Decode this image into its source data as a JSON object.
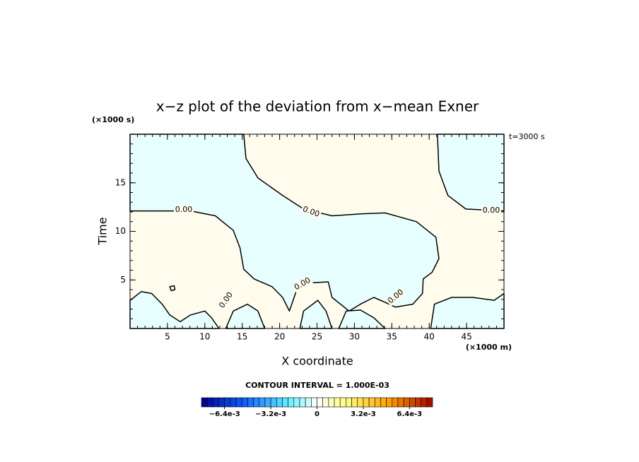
{
  "chart_data": {
    "type": "contour",
    "title": "x−z plot of the deviation from x−mean Exner",
    "x_label": "X coordinate",
    "y_label": "Time",
    "x_unit": "(×1000 m)",
    "y_unit": "(×1000 s)",
    "annotation": "t=3000 s",
    "xlim": [
      0,
      50
    ],
    "ylim": [
      0,
      20
    ],
    "xticks": [
      5,
      10,
      15,
      20,
      25,
      30,
      35,
      40,
      45
    ],
    "yticks": [
      5,
      10,
      15
    ],
    "minor_step": 1,
    "contour_level": 0,
    "contour_labels": [
      "0.00",
      "0.00",
      "0.00",
      "0.00",
      "0.00",
      "0.00"
    ],
    "negative_color": "#e8ffff",
    "positive_color": "#fffcee",
    "line_color": "#000000",
    "negative_regions": [
      {
        "x": [
          0,
          15.2,
          15.5,
          17.1,
          20.4,
          23.2,
          27.0,
          30.8,
          34.1,
          38.3,
          40.9,
          41.3,
          40.4,
          39.2,
          39.1,
          37.8,
          35.5,
          34.1,
          32.6,
          30.8,
          29.3,
          27.0,
          26.5,
          24.2,
          22.3,
          21.3,
          20.4,
          19.0,
          16.6,
          15.2,
          14.7,
          13.8,
          11.4,
          8.1,
          0
        ],
        "y": [
          20,
          20,
          17.5,
          15.5,
          13.7,
          12.3,
          11.6,
          11.8,
          11.9,
          11.0,
          9.4,
          7.2,
          5.8,
          5.1,
          3.6,
          2.5,
          2.2,
          2.7,
          3.2,
          2.5,
          1.8,
          3.2,
          4.8,
          4.7,
          4.0,
          1.8,
          3.2,
          4.3,
          5.1,
          6.1,
          8.3,
          10.1,
          11.6,
          12.1,
          12.1
        ]
      },
      {
        "x": [
          41.1,
          41.3,
          42.5,
          44.9,
          50,
          50
        ],
        "y": [
          20,
          16.2,
          13.7,
          12.3,
          12.1,
          20
        ]
      },
      {
        "x": [
          0,
          1.5,
          2.9,
          4.3,
          5.3,
          6.7,
          8.1,
          10.0,
          10.9,
          11.9,
          0
        ],
        "y": [
          2.9,
          3.8,
          3.6,
          2.5,
          1.4,
          0.7,
          1.4,
          1.8,
          1.1,
          0,
          0
        ]
      },
      {
        "x": [
          12.8,
          13.8,
          15.7,
          17.1,
          18.0
        ],
        "y": [
          0,
          1.8,
          2.5,
          1.8,
          0
        ]
      },
      {
        "x": [
          22.7,
          23.2,
          25.1,
          26.2,
          27.0
        ],
        "y": [
          0,
          1.8,
          2.9,
          1.8,
          0
        ]
      },
      {
        "x": [
          27.9,
          28.9,
          30.8,
          32.6,
          34.1
        ],
        "y": [
          0,
          1.8,
          1.9,
          1.1,
          0
        ]
      },
      {
        "x": [
          40.2,
          40.7,
          43.0,
          45.8,
          48.7,
          50,
          50
        ],
        "y": [
          0,
          2.5,
          3.2,
          3.2,
          2.9,
          3.6,
          0
        ]
      },
      {
        "x": [
          5.3,
          5.9,
          6.0,
          5.5
        ],
        "y": [
          4.3,
          4.4,
          4.0,
          3.9
        ]
      }
    ],
    "colorbar": {
      "title": "CONTOUR INTERVAL = 1.000E-03",
      "lim": [
        -0.008,
        0.008
      ],
      "step": 0.0004,
      "ticks": [
        {
          "value": -0.0064,
          "label": "−6.4e-3"
        },
        {
          "value": -0.0032,
          "label": "−3.2e-3"
        },
        0,
        {
          "value": 0.0032,
          "label": "3.2e-3"
        },
        {
          "value": 0.0064,
          "label": "6.4e-3"
        }
      ],
      "stops": [
        [
          -0.008,
          "#000090"
        ],
        [
          -0.005,
          "#1060ff"
        ],
        [
          -0.002,
          "#60f0ff"
        ],
        [
          0,
          "#ffffff"
        ],
        [
          0.002,
          "#ffff80"
        ],
        [
          0.005,
          "#ffa000"
        ],
        [
          0.008,
          "#a00000"
        ]
      ]
    }
  }
}
